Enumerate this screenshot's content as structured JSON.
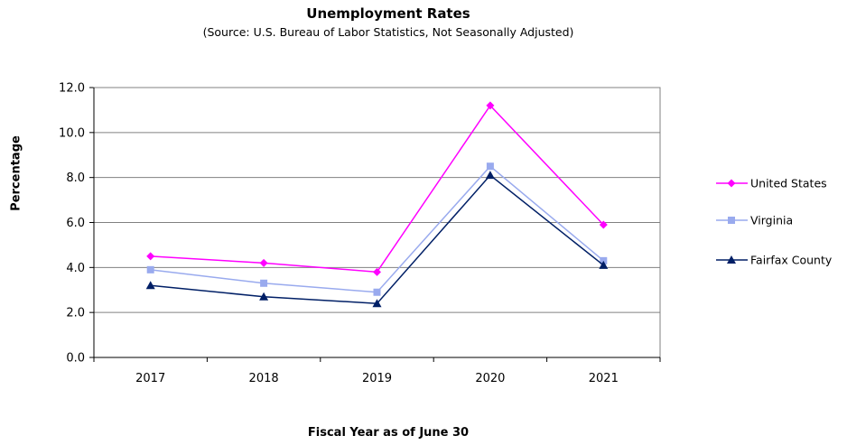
{
  "chart_data": {
    "type": "line",
    "title": "Unemployment Rates",
    "subtitle": "(Source: U.S. Bureau of Labor Statistics, Not Seasonally Adjusted)",
    "xlabel": "Fiscal Year as of June 30",
    "ylabel": "Percentage",
    "categories": [
      "2017",
      "2018",
      "2019",
      "2020",
      "2021"
    ],
    "ylim": [
      0,
      12
    ],
    "yticks": [
      "0.0",
      "2.0",
      "4.0",
      "6.0",
      "8.0",
      "10.0",
      "12.0"
    ],
    "grid": true,
    "legend_position": "right",
    "series": [
      {
        "name": "United States",
        "values": [
          4.5,
          4.2,
          3.8,
          11.2,
          5.9
        ],
        "color": "#ff00ff",
        "marker": "diamond"
      },
      {
        "name": "Virginia",
        "values": [
          3.9,
          3.3,
          2.9,
          8.5,
          4.3
        ],
        "color": "#99aaee",
        "marker": "square"
      },
      {
        "name": "Fairfax County",
        "values": [
          3.2,
          2.7,
          2.4,
          8.1,
          4.1
        ],
        "color": "#001f66",
        "marker": "triangle"
      }
    ]
  }
}
